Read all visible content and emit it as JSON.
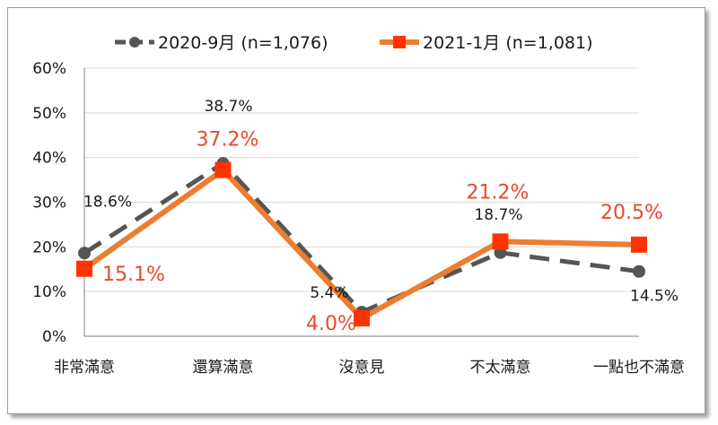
{
  "chart_data": {
    "type": "line",
    "categories": [
      "非常滿意",
      "還算滿意",
      "沒意見",
      "不太滿意",
      "一點也不滿意"
    ],
    "yticks": [
      "0%",
      "10%",
      "20%",
      "30%",
      "40%",
      "50%",
      "60%"
    ],
    "ylim": [
      0,
      60
    ],
    "grid": true,
    "legend_position": "top",
    "series": [
      {
        "name": "2020-9月  (n=1,076)",
        "values": [
          18.6,
          38.7,
          5.4,
          18.7,
          14.5
        ],
        "labels": [
          "18.6%",
          "38.7%",
          "5.4%",
          "18.7%",
          "14.5%"
        ],
        "color": "#555555",
        "style": "dashed",
        "marker": "circle"
      },
      {
        "name": "2021-1月  (n=1,081)",
        "values": [
          15.1,
          37.2,
          4.0,
          21.2,
          20.5
        ],
        "labels": [
          "15.1%",
          "37.2%",
          "4.0%",
          "21.2%",
          "20.5%"
        ],
        "color": "#ed7d31",
        "marker_color": "#ff3300",
        "label_color": "#e8492b",
        "style": "solid",
        "marker": "square"
      }
    ]
  }
}
